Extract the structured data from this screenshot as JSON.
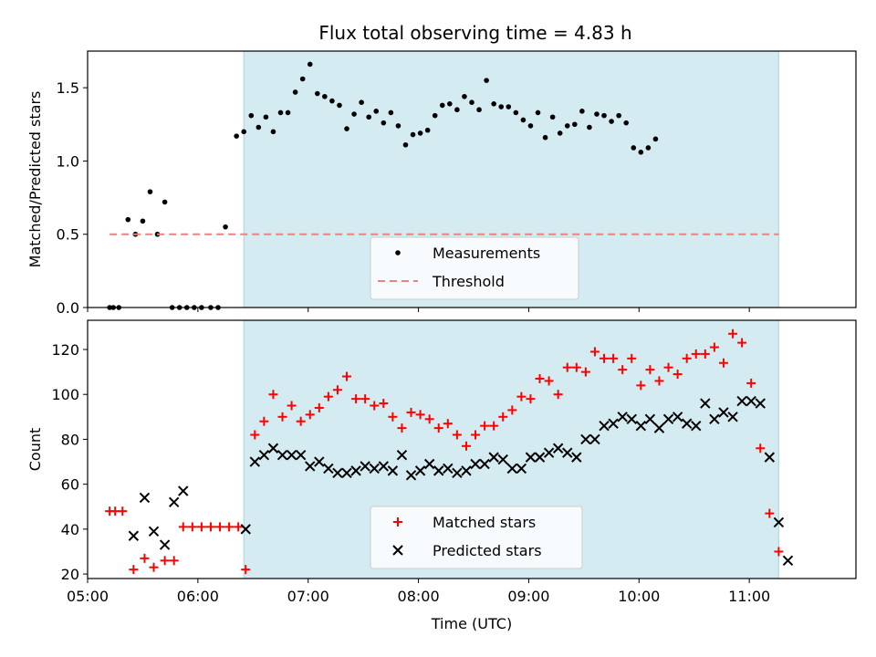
{
  "figure": {
    "title": "Flux total observing time = 4.83 h"
  },
  "chart_data": [
    {
      "type": "scatter",
      "panel": "top",
      "xlabel": "",
      "ylabel": "Matched/Predicted stars",
      "xlim": [
        "05:00",
        "11:58"
      ],
      "ylim": [
        0,
        1.75
      ],
      "yticks": [
        "0.0",
        "0.5",
        "1.0",
        "1.5"
      ],
      "shaded_region": {
        "x_start": "06:25",
        "x_end": "11:16",
        "color": "#d4ebf2"
      },
      "series": [
        {
          "name": "Measurements",
          "marker": "dot",
          "color": "#000000",
          "points": [
            [
              "05:12",
              0.0
            ],
            [
              "05:14",
              0.0
            ],
            [
              "05:17",
              0.0
            ],
            [
              "05:22",
              0.6
            ],
            [
              "05:26",
              0.5
            ],
            [
              "05:30",
              0.59
            ],
            [
              "05:34",
              0.79
            ],
            [
              "05:38",
              0.5
            ],
            [
              "05:42",
              0.72
            ],
            [
              "05:46",
              0.0
            ],
            [
              "05:50",
              0.0
            ],
            [
              "05:54",
              0.0
            ],
            [
              "05:58",
              0.0
            ],
            [
              "06:02",
              0.0
            ],
            [
              "06:07",
              0.0
            ],
            [
              "06:11",
              0.0
            ],
            [
              "06:15",
              0.55
            ],
            [
              "06:21",
              1.17
            ],
            [
              "06:25",
              1.2
            ],
            [
              "06:29",
              1.31
            ],
            [
              "06:33",
              1.23
            ],
            [
              "06:37",
              1.3
            ],
            [
              "06:41",
              1.2
            ],
            [
              "06:45",
              1.33
            ],
            [
              "06:49",
              1.33
            ],
            [
              "06:53",
              1.47
            ],
            [
              "06:57",
              1.56
            ],
            [
              "07:01",
              1.66
            ],
            [
              "07:05",
              1.46
            ],
            [
              "07:09",
              1.44
            ],
            [
              "07:13",
              1.41
            ],
            [
              "07:17",
              1.38
            ],
            [
              "07:21",
              1.22
            ],
            [
              "07:25",
              1.32
            ],
            [
              "07:29",
              1.4
            ],
            [
              "07:33",
              1.3
            ],
            [
              "07:37",
              1.34
            ],
            [
              "07:41",
              1.26
            ],
            [
              "07:45",
              1.33
            ],
            [
              "07:49",
              1.24
            ],
            [
              "07:53",
              1.11
            ],
            [
              "07:57",
              1.18
            ],
            [
              "08:01",
              1.19
            ],
            [
              "08:05",
              1.21
            ],
            [
              "08:09",
              1.31
            ],
            [
              "08:13",
              1.38
            ],
            [
              "08:17",
              1.39
            ],
            [
              "08:21",
              1.35
            ],
            [
              "08:25",
              1.44
            ],
            [
              "08:29",
              1.4
            ],
            [
              "08:33",
              1.35
            ],
            [
              "08:37",
              1.55
            ],
            [
              "08:41",
              1.39
            ],
            [
              "08:45",
              1.37
            ],
            [
              "08:49",
              1.37
            ],
            [
              "08:53",
              1.33
            ],
            [
              "08:57",
              1.28
            ],
            [
              "09:01",
              1.24
            ],
            [
              "09:05",
              1.33
            ],
            [
              "09:09",
              1.16
            ],
            [
              "09:13",
              1.3
            ],
            [
              "09:17",
              1.19
            ],
            [
              "09:21",
              1.24
            ],
            [
              "09:25",
              1.25
            ],
            [
              "09:29",
              1.34
            ],
            [
              "09:33",
              1.23
            ],
            [
              "09:37",
              1.32
            ],
            [
              "09:41",
              1.31
            ],
            [
              "09:45",
              1.27
            ],
            [
              "09:49",
              1.31
            ],
            [
              "09:53",
              1.26
            ],
            [
              "09:57",
              1.09
            ],
            [
              "10:01",
              1.06
            ],
            [
              "10:05",
              1.09
            ],
            [
              "10:09",
              1.15
            ]
          ]
        },
        {
          "name": "Threshold",
          "marker": "dashed-line",
          "color": "#f08080",
          "points": [
            [
              "05:12",
              0.5
            ],
            [
              "11:16",
              0.5
            ]
          ]
        }
      ],
      "legend": {
        "placement": "lower-center"
      }
    },
    {
      "type": "scatter",
      "panel": "bottom",
      "xlabel": "Time (UTC)",
      "ylabel": "Count",
      "xlim": [
        "05:00",
        "11:58"
      ],
      "ylim": [
        18,
        133
      ],
      "yticks": [
        "20",
        "40",
        "60",
        "80",
        "100",
        "120"
      ],
      "xticks": [
        "05:00",
        "06:00",
        "07:00",
        "08:00",
        "09:00",
        "10:00",
        "11:00"
      ],
      "shaded_region": {
        "x_start": "06:25",
        "x_end": "11:16",
        "color": "#d4ebf2"
      },
      "series": [
        {
          "name": "Matched stars",
          "marker": "plus",
          "color": "#ff0000",
          "points": [
            [
              "05:12",
              48
            ],
            [
              "05:15",
              48
            ],
            [
              "05:19",
              48
            ],
            [
              "05:25",
              22
            ],
            [
              "05:31",
              27
            ],
            [
              "05:36",
              23
            ],
            [
              "05:42",
              26
            ],
            [
              "05:47",
              26
            ],
            [
              "05:52",
              41
            ],
            [
              "05:57",
              41
            ],
            [
              "06:02",
              41
            ],
            [
              "06:07",
              41
            ],
            [
              "06:12",
              41
            ],
            [
              "06:17",
              41
            ],
            [
              "06:22",
              41
            ],
            [
              "06:26",
              22
            ],
            [
              "06:31",
              82
            ],
            [
              "06:36",
              88
            ],
            [
              "06:41",
              100
            ],
            [
              "06:46",
              90
            ],
            [
              "06:51",
              95
            ],
            [
              "06:56",
              88
            ],
            [
              "07:01",
              91
            ],
            [
              "07:06",
              94
            ],
            [
              "07:11",
              99
            ],
            [
              "07:16",
              102
            ],
            [
              "07:21",
              108
            ],
            [
              "07:26",
              98
            ],
            [
              "07:31",
              98
            ],
            [
              "07:36",
              95
            ],
            [
              "07:41",
              96
            ],
            [
              "07:46",
              90
            ],
            [
              "07:51",
              85
            ],
            [
              "07:56",
              92
            ],
            [
              "08:01",
              91
            ],
            [
              "08:06",
              89
            ],
            [
              "08:11",
              85
            ],
            [
              "08:16",
              87
            ],
            [
              "08:21",
              82
            ],
            [
              "08:26",
              77
            ],
            [
              "08:31",
              82
            ],
            [
              "08:36",
              86
            ],
            [
              "08:41",
              86
            ],
            [
              "08:46",
              90
            ],
            [
              "08:51",
              93
            ],
            [
              "08:56",
              99
            ],
            [
              "09:01",
              98
            ],
            [
              "09:06",
              107
            ],
            [
              "09:11",
              106
            ],
            [
              "09:16",
              100
            ],
            [
              "09:21",
              112
            ],
            [
              "09:26",
              112
            ],
            [
              "09:31",
              110
            ],
            [
              "09:36",
              119
            ],
            [
              "09:41",
              116
            ],
            [
              "09:46",
              116
            ],
            [
              "09:51",
              111
            ],
            [
              "09:56",
              116
            ],
            [
              "10:01",
              104
            ],
            [
              "10:06",
              111
            ],
            [
              "10:11",
              106
            ],
            [
              "10:16",
              112
            ],
            [
              "10:21",
              109
            ],
            [
              "10:26",
              116
            ],
            [
              "10:31",
              118
            ],
            [
              "10:36",
              118
            ],
            [
              "10:41",
              121
            ],
            [
              "10:46",
              114
            ],
            [
              "10:51",
              127
            ],
            [
              "10:56",
              123
            ],
            [
              "11:01",
              105
            ],
            [
              "11:06",
              76
            ],
            [
              "11:11",
              47
            ],
            [
              "11:16",
              30
            ]
          ]
        },
        {
          "name": "Predicted stars",
          "marker": "x",
          "color": "#000000",
          "points": [
            [
              "05:25",
              37
            ],
            [
              "05:31",
              54
            ],
            [
              "05:36",
              39
            ],
            [
              "05:42",
              33
            ],
            [
              "05:47",
              52
            ],
            [
              "05:52",
              57
            ],
            [
              "06:26",
              40
            ],
            [
              "06:31",
              70
            ],
            [
              "06:36",
              73
            ],
            [
              "06:41",
              76
            ],
            [
              "06:46",
              73
            ],
            [
              "06:51",
              73
            ],
            [
              "06:56",
              73
            ],
            [
              "07:01",
              68
            ],
            [
              "07:06",
              70
            ],
            [
              "07:11",
              67
            ],
            [
              "07:16",
              65
            ],
            [
              "07:21",
              65
            ],
            [
              "07:26",
              66
            ],
            [
              "07:31",
              68
            ],
            [
              "07:36",
              67
            ],
            [
              "07:41",
              68
            ],
            [
              "07:46",
              66
            ],
            [
              "07:51",
              73
            ],
            [
              "07:56",
              64
            ],
            [
              "08:01",
              66
            ],
            [
              "08:06",
              69
            ],
            [
              "08:11",
              66
            ],
            [
              "08:16",
              67
            ],
            [
              "08:21",
              65
            ],
            [
              "08:26",
              66
            ],
            [
              "08:31",
              69
            ],
            [
              "08:36",
              69
            ],
            [
              "08:41",
              72
            ],
            [
              "08:46",
              71
            ],
            [
              "08:51",
              67
            ],
            [
              "08:56",
              67
            ],
            [
              "09:01",
              72
            ],
            [
              "09:06",
              72
            ],
            [
              "09:11",
              74
            ],
            [
              "09:16",
              76
            ],
            [
              "09:21",
              74
            ],
            [
              "09:26",
              72
            ],
            [
              "09:31",
              80
            ],
            [
              "09:36",
              80
            ],
            [
              "09:41",
              86
            ],
            [
              "09:46",
              87
            ],
            [
              "09:51",
              90
            ],
            [
              "09:56",
              89
            ],
            [
              "10:01",
              86
            ],
            [
              "10:06",
              89
            ],
            [
              "10:11",
              85
            ],
            [
              "10:16",
              89
            ],
            [
              "10:21",
              90
            ],
            [
              "10:26",
              87
            ],
            [
              "10:31",
              86
            ],
            [
              "10:36",
              96
            ],
            [
              "10:41",
              89
            ],
            [
              "10:46",
              92
            ],
            [
              "10:51",
              90
            ],
            [
              "10:56",
              97
            ],
            [
              "11:01",
              97
            ],
            [
              "11:06",
              96
            ],
            [
              "11:11",
              72
            ],
            [
              "11:16",
              43
            ],
            [
              "11:21",
              26
            ]
          ]
        }
      ],
      "legend": {
        "placement": "lower-center"
      }
    }
  ]
}
